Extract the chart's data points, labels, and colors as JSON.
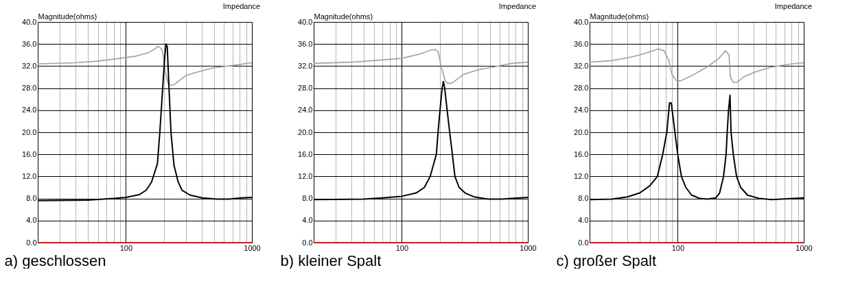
{
  "chart_data": [
    {
      "type": "line",
      "title": "Impedance",
      "ylabel": "Magnitude(ohms)",
      "annotations": [
        "a) geschlossen"
      ],
      "log": "x",
      "grid": true,
      "xlim": [
        20,
        1000
      ],
      "xticks": [
        {
          "value": 20,
          "label": null
        },
        {
          "value": 30,
          "label": null
        },
        {
          "value": 40,
          "label": null
        },
        {
          "value": 50,
          "label": null
        },
        {
          "value": 60,
          "label": null
        },
        {
          "value": 70,
          "label": null
        },
        {
          "value": 80,
          "label": null
        },
        {
          "value": 90,
          "label": null
        },
        {
          "value": 100,
          "label": "100"
        },
        {
          "value": 200,
          "label": null
        },
        {
          "value": 300,
          "label": null
        },
        {
          "value": 400,
          "label": null
        },
        {
          "value": 500,
          "label": null
        },
        {
          "value": 600,
          "label": null
        },
        {
          "value": 700,
          "label": null
        },
        {
          "value": 800,
          "label": null
        },
        {
          "value": 900,
          "label": null
        },
        {
          "value": 1000,
          "label": "1000"
        }
      ],
      "ylim": [
        0,
        40
      ],
      "yticks": [
        {
          "value": 0,
          "label": "0.0"
        },
        {
          "value": 4,
          "label": "4.0"
        },
        {
          "value": 8,
          "label": "8.0"
        },
        {
          "value": 12,
          "label": "12.0"
        },
        {
          "value": 16,
          "label": "16.0"
        },
        {
          "value": 20,
          "label": "20.0"
        },
        {
          "value": 24,
          "label": "24.0"
        },
        {
          "value": 28,
          "label": "28.0"
        },
        {
          "value": 32,
          "label": "32.0"
        },
        {
          "value": 36,
          "label": "36.0"
        },
        {
          "value": 40,
          "label": "40.0"
        }
      ],
      "series": [
        {
          "color": "#cc0000",
          "x": [
            20,
            1000
          ],
          "values": [
            0,
            0
          ]
        },
        {
          "color": "#a0a0a0",
          "x": [
            20,
            40,
            60,
            90,
            120,
            150,
            170,
            180,
            190,
            196,
            205,
            215,
            228,
            240,
            270,
            300,
            380,
            500,
            700,
            1000
          ],
          "values": [
            32.4,
            32.6,
            32.9,
            33.4,
            33.8,
            34.4,
            35.1,
            35.6,
            35.2,
            34.5,
            31,
            29,
            28.5,
            28.6,
            29.5,
            30.3,
            31,
            31.7,
            32.1,
            32.6
          ]
        },
        {
          "color": "#000000",
          "x": [
            20,
            50,
            80,
            100,
            128,
            145,
            160,
            178,
            186,
            196,
            204,
            208,
            213,
            220,
            228,
            241,
            260,
            279,
            324,
            405,
            527,
            657,
            820,
            1000
          ],
          "values": [
            7.6,
            7.7,
            8,
            8.2,
            8.7,
            9.5,
            11,
            14.3,
            20,
            28,
            34,
            36,
            35.5,
            28,
            20,
            14,
            11,
            9.5,
            8.6,
            8.1,
            7.9,
            7.9,
            8.1,
            8.2
          ]
        }
      ]
    },
    {
      "type": "line",
      "title": "Impedance",
      "ylabel": "Magnitude(ohms)",
      "annotations": [
        "b) kleiner Spalt"
      ],
      "log": "x",
      "grid": true,
      "xlim": [
        20,
        1000
      ],
      "xticks": [
        {
          "value": 20,
          "label": null
        },
        {
          "value": 30,
          "label": null
        },
        {
          "value": 40,
          "label": null
        },
        {
          "value": 50,
          "label": null
        },
        {
          "value": 60,
          "label": null
        },
        {
          "value": 70,
          "label": null
        },
        {
          "value": 80,
          "label": null
        },
        {
          "value": 90,
          "label": null
        },
        {
          "value": 100,
          "label": "100"
        },
        {
          "value": 200,
          "label": null
        },
        {
          "value": 300,
          "label": null
        },
        {
          "value": 400,
          "label": null
        },
        {
          "value": 500,
          "label": null
        },
        {
          "value": 600,
          "label": null
        },
        {
          "value": 700,
          "label": null
        },
        {
          "value": 800,
          "label": null
        },
        {
          "value": 900,
          "label": null
        },
        {
          "value": 1000,
          "label": "1000"
        }
      ],
      "ylim": [
        0,
        40
      ],
      "yticks": [
        {
          "value": 0,
          "label": "0.0"
        },
        {
          "value": 4,
          "label": "4.0"
        },
        {
          "value": 8,
          "label": "8.0"
        },
        {
          "value": 12,
          "label": "12.0"
        },
        {
          "value": 16,
          "label": "16.0"
        },
        {
          "value": 20,
          "label": "20.0"
        },
        {
          "value": 24,
          "label": "24.0"
        },
        {
          "value": 28,
          "label": "28.0"
        },
        {
          "value": 32,
          "label": "32.0"
        },
        {
          "value": 36,
          "label": "36.0"
        },
        {
          "value": 40,
          "label": "40.0"
        }
      ],
      "series": [
        {
          "color": "#cc0000",
          "x": [
            20,
            1000
          ],
          "values": [
            0,
            0
          ]
        },
        {
          "color": "#a0a0a0",
          "x": [
            20,
            40,
            60,
            100,
            140,
            170,
            185,
            195,
            205,
            220,
            230,
            250,
            270,
            310,
            400,
            550,
            750,
            1000
          ],
          "values": [
            32.5,
            32.7,
            33,
            33.4,
            34.2,
            34.9,
            35,
            34.5,
            32,
            29.5,
            28.9,
            28.9,
            29.5,
            30.5,
            31.3,
            31.9,
            32.5,
            32.7
          ]
        },
        {
          "color": "#000000",
          "x": [
            20,
            50,
            70,
            100,
            130,
            151,
            168,
            188,
            194,
            201,
            209,
            214,
            219,
            229,
            240,
            252,
            264,
            285,
            318,
            373,
            482,
            620,
            1000
          ],
          "values": [
            7.8,
            7.9,
            8.1,
            8.4,
            9,
            10,
            12,
            16,
            20,
            24,
            28,
            29.2,
            28,
            24,
            20,
            16,
            12,
            10,
            9,
            8.3,
            7.9,
            7.9,
            8.2
          ]
        }
      ]
    },
    {
      "type": "line",
      "title": "Impedance",
      "ylabel": "Magnitude(ohms)",
      "annotations": [
        "c) großer Spalt"
      ],
      "log": "x",
      "grid": true,
      "xlim": [
        20,
        1000
      ],
      "xticks": [
        {
          "value": 20,
          "label": null
        },
        {
          "value": 30,
          "label": null
        },
        {
          "value": 40,
          "label": null
        },
        {
          "value": 50,
          "label": null
        },
        {
          "value": 60,
          "label": null
        },
        {
          "value": 70,
          "label": null
        },
        {
          "value": 80,
          "label": null
        },
        {
          "value": 90,
          "label": null
        },
        {
          "value": 100,
          "label": "100"
        },
        {
          "value": 200,
          "label": null
        },
        {
          "value": 300,
          "label": null
        },
        {
          "value": 400,
          "label": null
        },
        {
          "value": 500,
          "label": null
        },
        {
          "value": 600,
          "label": null
        },
        {
          "value": 700,
          "label": null
        },
        {
          "value": 800,
          "label": null
        },
        {
          "value": 900,
          "label": null
        },
        {
          "value": 1000,
          "label": "1000"
        }
      ],
      "ylim": [
        0,
        40
      ],
      "yticks": [
        {
          "value": 0,
          "label": "0.0"
        },
        {
          "value": 4,
          "label": "4.0"
        },
        {
          "value": 8,
          "label": "8.0"
        },
        {
          "value": 12,
          "label": "12.0"
        },
        {
          "value": 16,
          "label": "16.0"
        },
        {
          "value": 20,
          "label": "20.0"
        },
        {
          "value": 24,
          "label": "24.0"
        },
        {
          "value": 28,
          "label": "28.0"
        },
        {
          "value": 32,
          "label": "32.0"
        },
        {
          "value": 36,
          "label": "36.0"
        },
        {
          "value": 40,
          "label": "40.0"
        }
      ],
      "series": [
        {
          "color": "#cc0000",
          "x": [
            20,
            1000
          ],
          "values": [
            0,
            0
          ]
        },
        {
          "color": "#a0a0a0",
          "x": [
            20,
            30,
            40,
            50,
            60,
            70,
            78,
            85,
            90,
            97,
            105,
            130,
            170,
            210,
            240,
            255,
            262,
            278,
            300,
            330,
            420,
            550,
            800,
            1000
          ],
          "values": [
            32.7,
            33,
            33.5,
            34,
            34.6,
            35.1,
            34.8,
            33,
            30.5,
            29.4,
            29.3,
            30.3,
            31.8,
            33.3,
            34.8,
            34,
            30,
            29,
            29.1,
            30,
            31,
            31.8,
            32.4,
            32.6
          ]
        },
        {
          "color": "#000000",
          "x": [
            20,
            30,
            40,
            50,
            60,
            69,
            76,
            82,
            86,
            89,
            95,
            100,
            107,
            116,
            129,
            150,
            173,
            200,
            215,
            231,
            242,
            247,
            253,
            260,
            265,
            276,
            293,
            316,
            358,
            446,
            555,
            1000
          ],
          "values": [
            7.8,
            7.9,
            8.3,
            9,
            10.3,
            12,
            16,
            20,
            25.3,
            25.3,
            20,
            16,
            12,
            10,
            8.6,
            8,
            7.9,
            8.1,
            9,
            12,
            16,
            20,
            24,
            26.7,
            20,
            16,
            12,
            10,
            8.6,
            8,
            7.8,
            8.1
          ]
        }
      ]
    }
  ]
}
